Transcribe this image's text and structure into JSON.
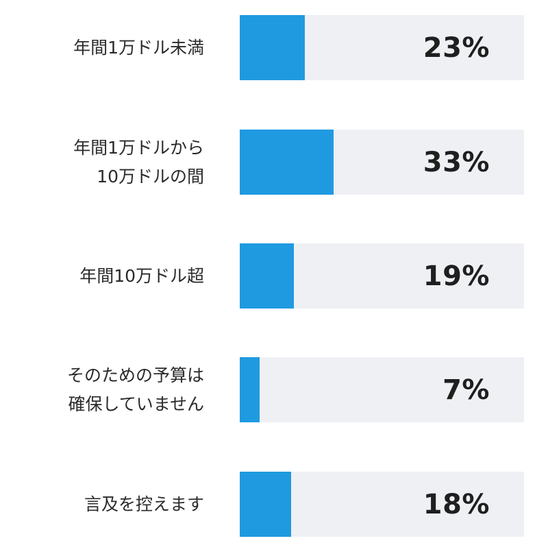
{
  "chart_data": {
    "type": "bar",
    "orientation": "horizontal",
    "categories": [
      "年間1万ドル未満",
      "年間1万ドルから\n10万ドルの間",
      "年間10万ドル超",
      "そのための予算は\n確保していません",
      "言及を控えます"
    ],
    "values": [
      23,
      33,
      19,
      7,
      18
    ],
    "value_labels": [
      "23%",
      "33%",
      "19%",
      "7%",
      "18%"
    ],
    "title": "",
    "xlabel": "",
    "ylabel": "",
    "xlim": [
      0,
      100
    ],
    "grid": false,
    "legend": "none",
    "colors": {
      "bar": "#1f9ae0",
      "track": "#eef0f4",
      "label_text": "#2a2a2a",
      "value_text": "#1f1f1f"
    }
  }
}
